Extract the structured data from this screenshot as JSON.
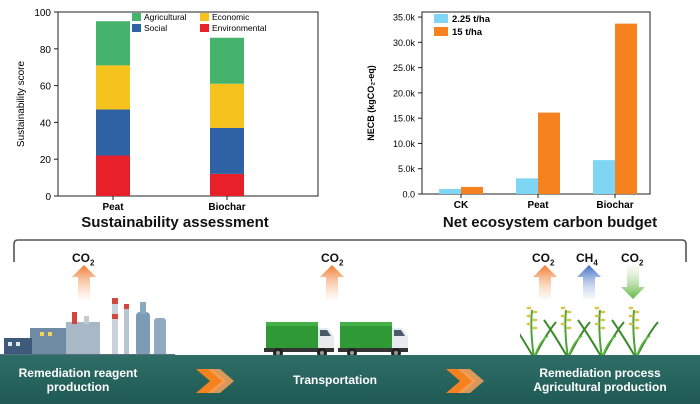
{
  "chart_data": [
    {
      "type": "bar",
      "stacked": true,
      "title": "Sustainability assessment",
      "ylabel": "Sustainability score",
      "ylim": [
        0,
        100
      ],
      "yticks": [
        0,
        20,
        40,
        60,
        80,
        100
      ],
      "categories": [
        "Peat",
        "Biochar"
      ],
      "legend": "top",
      "series": [
        {
          "name": "Environmental",
          "color": "#e8202a",
          "values": [
            22,
            12
          ]
        },
        {
          "name": "Social",
          "color": "#2f62a5",
          "values": [
            25,
            25
          ]
        },
        {
          "name": "Economic",
          "color": "#f6c21e",
          "values": [
            24,
            24
          ]
        },
        {
          "name": "Agricultural",
          "color": "#45b36b",
          "values": [
            24,
            25
          ]
        }
      ]
    },
    {
      "type": "bar",
      "title": "Net ecosystem carbon budget",
      "ylabel": "NECB (kgCO₂-eq)",
      "ylim": [
        0,
        36000
      ],
      "yticks": [
        "0.0",
        "5.0k",
        "10.0k",
        "15.0k",
        "20.0k",
        "25.0k",
        "30.0k",
        "35.0k"
      ],
      "categories": [
        "CK",
        "Peat",
        "Biochar"
      ],
      "legend": "top-left",
      "series": [
        {
          "name": "2.25 t/ha",
          "color": "#7fd6f4",
          "values": [
            1000,
            3100,
            6700
          ]
        },
        {
          "name": "15 t/ha",
          "color": "#f5821f",
          "values": [
            1400,
            16100,
            33700
          ]
        }
      ]
    }
  ],
  "process": {
    "stages": [
      {
        "label": "Remediation reagent production"
      },
      {
        "label": "Transportation"
      },
      {
        "label": "Remediation process Agricultural production"
      }
    ],
    "emissions": {
      "factory": "CO",
      "transport": "CO",
      "field": [
        {
          "base": "CO",
          "sub": "2",
          "direction": "up",
          "color": "#f08a4b"
        },
        {
          "base": "CH",
          "sub": "4",
          "direction": "up",
          "color": "#4a78c8"
        },
        {
          "base": "CO",
          "sub": "2",
          "direction": "down",
          "color": "#6fbf4f"
        }
      ],
      "sub2": "2"
    }
  },
  "colors": {
    "bar_band": "#24625b",
    "chevron": "#f5821f"
  }
}
